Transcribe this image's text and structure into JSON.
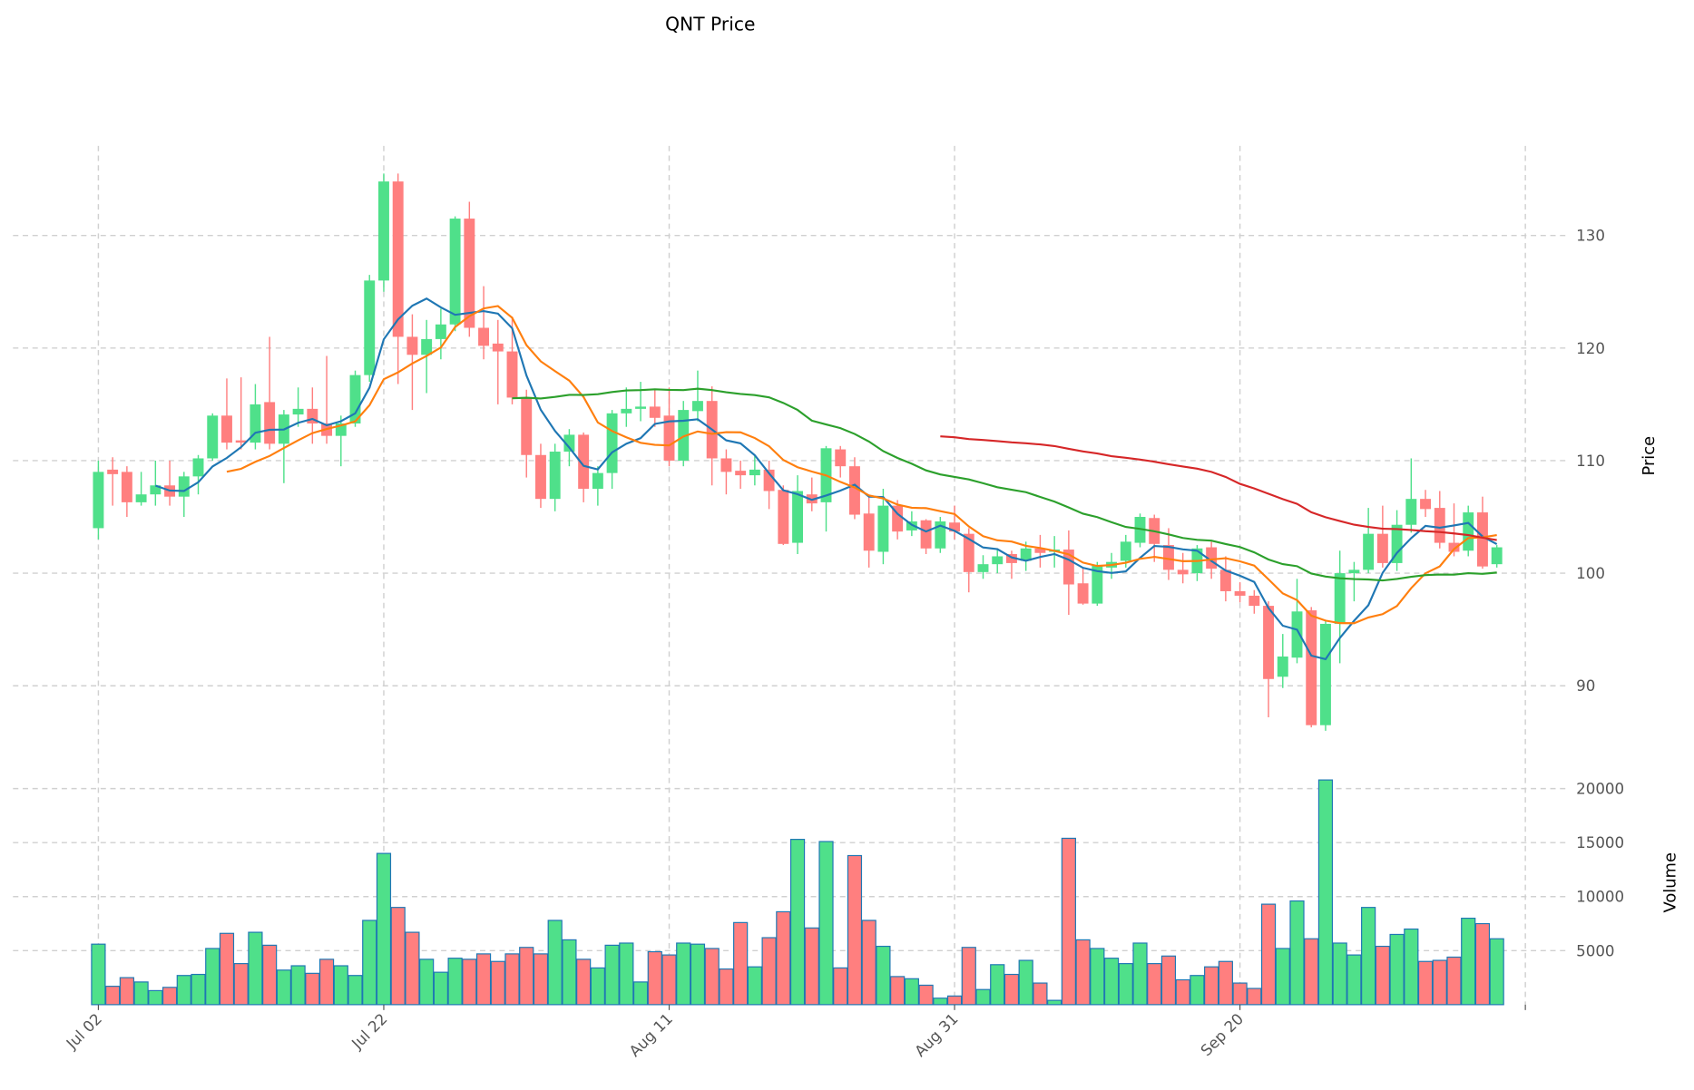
{
  "chart_data": {
    "type": "candlestick",
    "title": "QNT Price",
    "start_date": "Jul 02",
    "interval": "1 day",
    "price_panel": {
      "ylabel": "Price",
      "yticks": [
        90,
        100,
        110,
        120,
        130
      ],
      "ylim": [
        84.5,
        138
      ],
      "grid": true
    },
    "volume_panel": {
      "ylabel": "Volume",
      "yticks": [
        5000,
        10000,
        15000,
        20000
      ],
      "ylim": [
        0,
        22000
      ],
      "grid": true
    },
    "xticks": [
      {
        "day": 0,
        "label": "Jul 02"
      },
      {
        "day": 20,
        "label": "Jul 22"
      },
      {
        "day": 40,
        "label": "Aug 11"
      },
      {
        "day": 60,
        "label": "Aug 31"
      },
      {
        "day": 80,
        "label": "Sep 20"
      },
      {
        "day": 100,
        "label": ""
      }
    ],
    "moving_averages": [
      {
        "window": 5,
        "color": "#1f77b4"
      },
      {
        "window": 10,
        "color": "#ff7f0e"
      },
      {
        "window": 30,
        "color": "#2ca02c"
      },
      {
        "window": 60,
        "color": "#d62728"
      }
    ],
    "colors": {
      "up": "#4fe08a",
      "down": "#ff7f7f",
      "volume_edge": "#1f77b4"
    },
    "ohlcv": [
      [
        104,
        110,
        103,
        109,
        5600
      ],
      [
        109.2,
        110.3,
        106,
        108.8,
        1700
      ],
      [
        109,
        109.5,
        105,
        106.3,
        2500
      ],
      [
        106.3,
        109,
        106,
        107,
        2100
      ],
      [
        107,
        110,
        106,
        107.8,
        1300
      ],
      [
        107.8,
        110,
        106,
        106.8,
        1600
      ],
      [
        106.8,
        109,
        105,
        108.6,
        2700
      ],
      [
        108.6,
        110.5,
        107,
        110.2,
        2800
      ],
      [
        110.2,
        114.2,
        110,
        114,
        5200
      ],
      [
        114,
        117.3,
        111,
        111.6,
        6600
      ],
      [
        111.8,
        117.4,
        111,
        111.6,
        3800
      ],
      [
        111.6,
        116.8,
        111,
        115,
        6700
      ],
      [
        115.2,
        121,
        111,
        111.5,
        5500
      ],
      [
        111.5,
        114.5,
        108,
        114.1,
        3200
      ],
      [
        114.1,
        116.5,
        113,
        114.6,
        3600
      ],
      [
        114.6,
        116.5,
        111.5,
        113.3,
        2900
      ],
      [
        113.3,
        119.3,
        111.5,
        112.2,
        4200
      ],
      [
        112.2,
        114,
        109.5,
        113.3,
        3600
      ],
      [
        113.3,
        118,
        113,
        117.6,
        2700
      ],
      [
        117.6,
        126.5,
        117,
        126,
        7800
      ],
      [
        126,
        135.5,
        125,
        134.8,
        14000
      ],
      [
        134.8,
        135.5,
        116.8,
        121,
        9000
      ],
      [
        121,
        123,
        114.5,
        119.4,
        6700
      ],
      [
        119.4,
        122.5,
        116,
        120.8,
        4200
      ],
      [
        120.8,
        123.5,
        119,
        122.1,
        3000
      ],
      [
        122.1,
        131.7,
        121.5,
        131.5,
        4300
      ],
      [
        131.5,
        133,
        121,
        121.8,
        4200
      ],
      [
        121.8,
        125.5,
        119,
        120.2,
        4700
      ],
      [
        120.4,
        122.5,
        115,
        119.7,
        4000
      ],
      [
        119.7,
        122.8,
        115,
        115.6,
        4700
      ],
      [
        115.6,
        116.3,
        108.5,
        110.5,
        5300
      ],
      [
        110.5,
        111.5,
        105.8,
        106.6,
        4700
      ],
      [
        106.6,
        111.5,
        105.5,
        110.8,
        7800
      ],
      [
        110.8,
        112.8,
        109.5,
        112.3,
        6000
      ],
      [
        112.3,
        112.5,
        106.3,
        107.5,
        4200
      ],
      [
        107.5,
        109.5,
        106,
        108.9,
        3400
      ],
      [
        108.9,
        114.5,
        107.5,
        114.2,
        5500
      ],
      [
        114.2,
        116.5,
        113,
        114.6,
        5700
      ],
      [
        114.6,
        117,
        113.5,
        114.8,
        2100
      ],
      [
        114.8,
        116.3,
        113,
        113.8,
        4900
      ],
      [
        114,
        116.5,
        109.5,
        110,
        4600
      ],
      [
        110,
        115.3,
        109.5,
        114.5,
        5700
      ],
      [
        114.4,
        118,
        113.5,
        115.3,
        5600
      ],
      [
        115.3,
        116.6,
        107.8,
        110.2,
        5200
      ],
      [
        110.2,
        111,
        107,
        109,
        3300
      ],
      [
        109.1,
        110,
        107.5,
        108.7,
        7600
      ],
      [
        108.7,
        110.5,
        107.8,
        109.2,
        3500
      ],
      [
        109.2,
        110,
        105.7,
        107.3,
        6200
      ],
      [
        107.4,
        107.8,
        102.5,
        102.6,
        8600
      ],
      [
        102.7,
        108.7,
        101.7,
        107.3,
        15300
      ],
      [
        107,
        108.5,
        105.5,
        106.2,
        7100
      ],
      [
        106.3,
        111.3,
        103.7,
        111.1,
        15100
      ],
      [
        111,
        111.3,
        108.5,
        109.5,
        3400
      ],
      [
        109.5,
        110.3,
        104.8,
        105.2,
        13800
      ],
      [
        105.3,
        106.8,
        100.5,
        102,
        7800
      ],
      [
        101.9,
        107.5,
        100.8,
        106,
        5400
      ],
      [
        106,
        106.5,
        103,
        103.7,
        2600
      ],
      [
        103.8,
        105.5,
        103.3,
        104.6,
        2400
      ],
      [
        104.7,
        104.8,
        101.7,
        102.2,
        1800
      ],
      [
        102.2,
        105,
        101.8,
        104.6,
        600
      ],
      [
        104.5,
        106,
        103,
        103.7,
        800
      ],
      [
        103.5,
        104,
        98.3,
        100.1,
        5300
      ],
      [
        100.1,
        101.6,
        99.5,
        100.8,
        1400
      ],
      [
        100.8,
        102.2,
        100,
        101.5,
        3700
      ],
      [
        101.7,
        102,
        99.5,
        100.9,
        2800
      ],
      [
        101.1,
        102.8,
        100.2,
        102.2,
        4100
      ],
      [
        102.2,
        103.4,
        100.5,
        101.8,
        2000
      ],
      [
        101.9,
        103.3,
        100.5,
        102.1,
        400
      ],
      [
        102.1,
        103.8,
        96.3,
        99,
        15400
      ],
      [
        99.1,
        100.5,
        97.2,
        97.3,
        6000
      ],
      [
        97.3,
        101,
        97.1,
        100.7,
        5200
      ],
      [
        100.5,
        101.8,
        99.5,
        101,
        4300
      ],
      [
        101.1,
        103.4,
        100.5,
        102.8,
        3800
      ],
      [
        102.7,
        105.3,
        102.3,
        105,
        5700
      ],
      [
        104.9,
        105.2,
        101,
        102.6,
        3800
      ],
      [
        102.5,
        104,
        99.4,
        100.3,
        4500
      ],
      [
        100.3,
        101.8,
        99.1,
        99.9,
        2300
      ],
      [
        100,
        102.5,
        99.3,
        102.2,
        2700
      ],
      [
        102.3,
        102.8,
        99.5,
        100.4,
        3500
      ],
      [
        100.3,
        101.5,
        97.5,
        98.4,
        4000
      ],
      [
        98.4,
        99.2,
        97.4,
        98,
        2000
      ],
      [
        98,
        98.5,
        96.4,
        97.1,
        1500
      ],
      [
        97.1,
        97.5,
        87.2,
        90.6,
        9300
      ],
      [
        90.8,
        94.6,
        89.8,
        92.6,
        5200
      ],
      [
        92.5,
        99.5,
        92,
        96.6,
        9600
      ],
      [
        96.7,
        97,
        86.3,
        86.5,
        6100
      ],
      [
        86.5,
        95.8,
        86,
        95.5,
        20800
      ],
      [
        95.5,
        102,
        92,
        100,
        5700
      ],
      [
        100,
        101,
        97.5,
        100.3,
        4600
      ],
      [
        100.3,
        105.8,
        100,
        103.5,
        9000
      ],
      [
        103.5,
        106,
        100.5,
        100.9,
        5400
      ],
      [
        100.9,
        105.6,
        100.2,
        104.3,
        6500
      ],
      [
        104.3,
        110.2,
        103.6,
        106.6,
        7000
      ],
      [
        106.6,
        107.4,
        105,
        105.7,
        4000
      ],
      [
        105.8,
        107.3,
        102.2,
        102.7,
        4100
      ],
      [
        102.7,
        106.2,
        101.5,
        101.9,
        4400
      ],
      [
        102,
        106,
        101.5,
        105.4,
        8000
      ],
      [
        105.4,
        106.8,
        100.4,
        100.6,
        7500
      ],
      [
        100.8,
        102.5,
        100.5,
        102.3,
        6100
      ]
    ]
  }
}
